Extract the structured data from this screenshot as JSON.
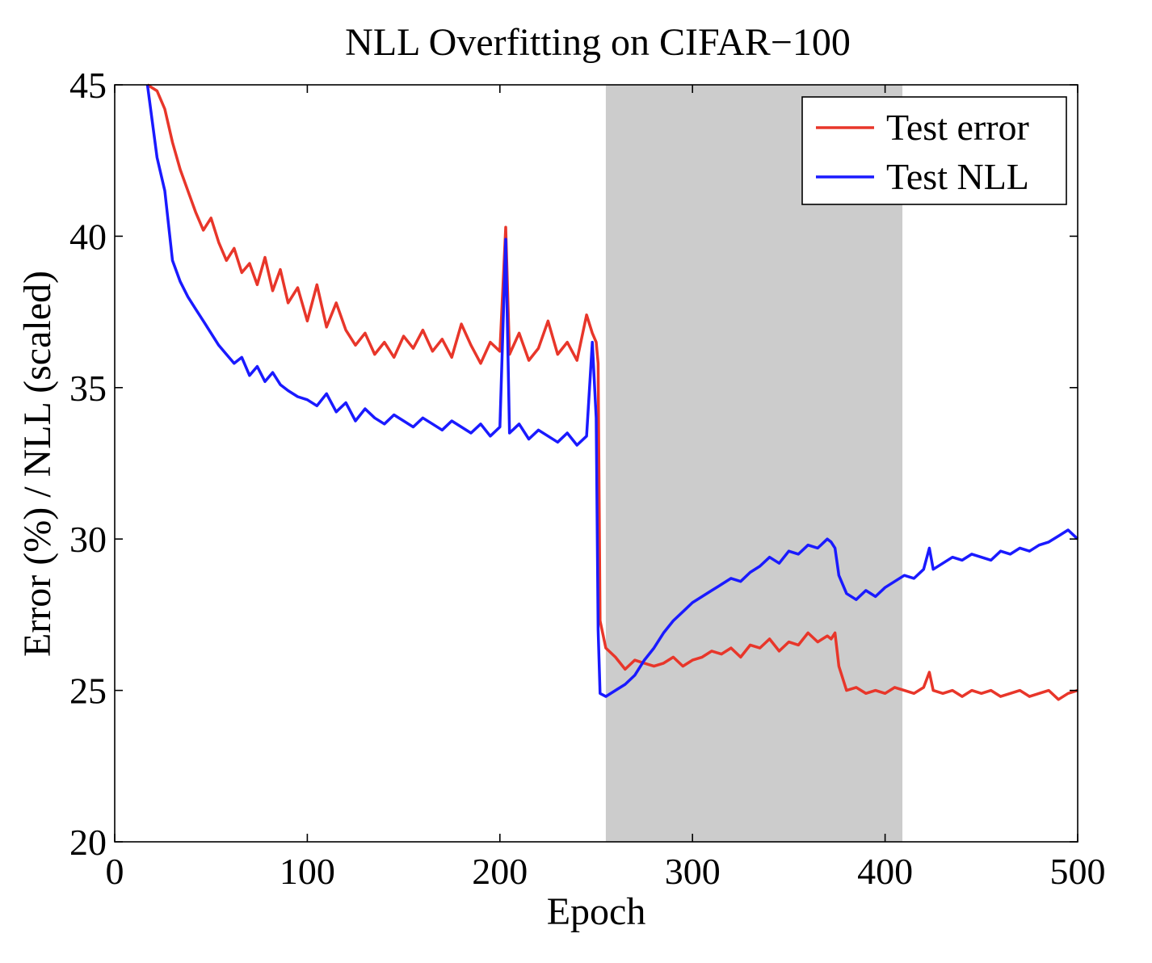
{
  "chart_data": {
    "type": "line",
    "title": "NLL Overfitting on CIFAR−100",
    "xlabel": "Epoch",
    "ylabel": "Error (%) / NLL (scaled)",
    "xlim": [
      0,
      500
    ],
    "ylim": [
      20,
      45
    ],
    "xticks": [
      "0",
      "100",
      "200",
      "300",
      "400",
      "500"
    ],
    "yticks": [
      "20",
      "25",
      "30",
      "35",
      "40",
      "45"
    ],
    "grid": false,
    "legend_position": "top-right",
    "highlight_region": {
      "x_start": 255,
      "x_end": 409,
      "color": "#cccccc"
    },
    "series": [
      {
        "name": "Test error",
        "color": "#e8362a",
        "x": [
          17,
          22,
          26,
          30,
          34,
          38,
          42,
          46,
          50,
          54,
          58,
          62,
          66,
          70,
          74,
          78,
          82,
          86,
          90,
          95,
          100,
          105,
          110,
          115,
          120,
          125,
          130,
          135,
          140,
          145,
          150,
          155,
          160,
          165,
          170,
          175,
          180,
          185,
          190,
          195,
          200,
          203,
          205,
          210,
          215,
          220,
          225,
          230,
          235,
          240,
          245,
          248,
          250,
          251,
          252,
          255,
          260,
          265,
          270,
          275,
          280,
          285,
          290,
          295,
          300,
          305,
          310,
          315,
          320,
          325,
          330,
          335,
          340,
          345,
          350,
          355,
          360,
          365,
          370,
          372,
          374,
          376,
          380,
          385,
          390,
          395,
          400,
          405,
          410,
          415,
          420,
          423,
          425,
          430,
          435,
          440,
          445,
          450,
          455,
          460,
          465,
          470,
          475,
          480,
          485,
          490,
          495,
          500
        ],
        "y": [
          45.0,
          44.8,
          44.2,
          43.1,
          42.2,
          41.5,
          40.8,
          40.2,
          40.6,
          39.8,
          39.2,
          39.6,
          38.8,
          39.1,
          38.4,
          39.3,
          38.2,
          38.9,
          37.8,
          38.3,
          37.2,
          38.4,
          37.0,
          37.8,
          36.9,
          36.4,
          36.8,
          36.1,
          36.5,
          36.0,
          36.7,
          36.3,
          36.9,
          36.2,
          36.6,
          36.0,
          37.1,
          36.4,
          35.8,
          36.5,
          36.2,
          40.3,
          36.1,
          36.8,
          35.9,
          36.3,
          37.2,
          36.1,
          36.5,
          35.9,
          37.4,
          36.8,
          36.5,
          35.8,
          27.3,
          26.4,
          26.1,
          25.7,
          26.0,
          25.9,
          25.8,
          25.9,
          26.1,
          25.8,
          26.0,
          26.1,
          26.3,
          26.2,
          26.4,
          26.1,
          26.5,
          26.4,
          26.7,
          26.3,
          26.6,
          26.5,
          26.9,
          26.6,
          26.8,
          26.7,
          26.9,
          25.8,
          25.0,
          25.1,
          24.9,
          25.0,
          24.9,
          25.1,
          25.0,
          24.9,
          25.1,
          25.6,
          25.0,
          24.9,
          25.0,
          24.8,
          25.0,
          24.9,
          25.0,
          24.8,
          24.9,
          25.0,
          24.8,
          24.9,
          25.0,
          24.7,
          24.9,
          25.0
        ]
      },
      {
        "name": "Test NLL",
        "color": "#1a1aff",
        "x": [
          17,
          22,
          26,
          30,
          34,
          38,
          42,
          46,
          50,
          54,
          58,
          62,
          66,
          70,
          74,
          78,
          82,
          86,
          90,
          95,
          100,
          105,
          110,
          115,
          120,
          125,
          130,
          135,
          140,
          145,
          150,
          155,
          160,
          165,
          170,
          175,
          180,
          185,
          190,
          195,
          200,
          203,
          205,
          210,
          215,
          220,
          225,
          230,
          235,
          240,
          245,
          248,
          250,
          251,
          252,
          255,
          260,
          265,
          270,
          275,
          280,
          285,
          290,
          295,
          300,
          305,
          310,
          315,
          320,
          325,
          330,
          335,
          340,
          345,
          350,
          355,
          360,
          365,
          370,
          372,
          374,
          376,
          380,
          385,
          390,
          395,
          400,
          405,
          410,
          415,
          420,
          423,
          425,
          430,
          435,
          440,
          445,
          450,
          455,
          460,
          465,
          470,
          475,
          480,
          485,
          490,
          495,
          500
        ],
        "y": [
          45.0,
          42.6,
          41.5,
          39.2,
          38.5,
          38.0,
          37.6,
          37.2,
          36.8,
          36.4,
          36.1,
          35.8,
          36.0,
          35.4,
          35.7,
          35.2,
          35.5,
          35.1,
          34.9,
          34.7,
          34.6,
          34.4,
          34.8,
          34.2,
          34.5,
          33.9,
          34.3,
          34.0,
          33.8,
          34.1,
          33.9,
          33.7,
          34.0,
          33.8,
          33.6,
          33.9,
          33.7,
          33.5,
          33.8,
          33.4,
          33.7,
          39.9,
          33.5,
          33.8,
          33.3,
          33.6,
          33.4,
          33.2,
          33.5,
          33.1,
          33.4,
          36.5,
          34.0,
          27.0,
          24.9,
          24.8,
          25.0,
          25.2,
          25.5,
          26.0,
          26.4,
          26.9,
          27.3,
          27.6,
          27.9,
          28.1,
          28.3,
          28.5,
          28.7,
          28.6,
          28.9,
          29.1,
          29.4,
          29.2,
          29.6,
          29.5,
          29.8,
          29.7,
          30.0,
          29.9,
          29.7,
          28.8,
          28.2,
          28.0,
          28.3,
          28.1,
          28.4,
          28.6,
          28.8,
          28.7,
          29.0,
          29.7,
          29.0,
          29.2,
          29.4,
          29.3,
          29.5,
          29.4,
          29.3,
          29.6,
          29.5,
          29.7,
          29.6,
          29.8,
          29.9,
          30.1,
          30.3,
          30.0
        ]
      }
    ]
  }
}
